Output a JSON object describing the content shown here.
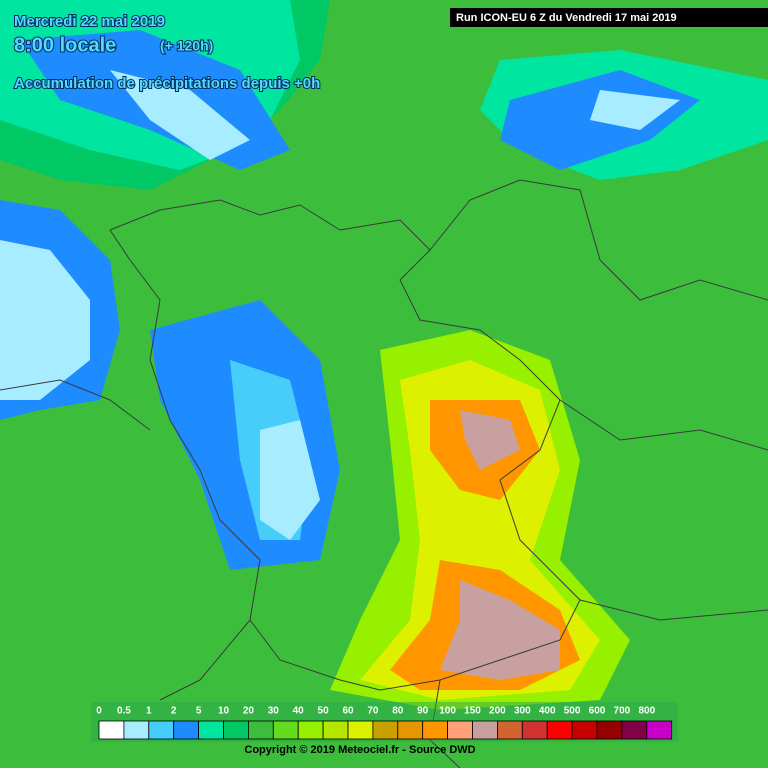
{
  "header": {
    "date": "Mercredi 22 mai 2019",
    "time": "8:00 locale",
    "offset": "(+ 120h)",
    "product": "Accumulation de précipitations depuis +0h",
    "run": "Run ICON-EU 6 Z du Vendredi 17 mai 2019"
  },
  "legend": {
    "items": [
      {
        "label": "0",
        "color": "#ffffff"
      },
      {
        "label": "0.5",
        "color": "#a8ecff"
      },
      {
        "label": "1",
        "color": "#46cdfa"
      },
      {
        "label": "2",
        "color": "#1e8cff"
      },
      {
        "label": "5",
        "color": "#00e6a0"
      },
      {
        "label": "10",
        "color": "#00c864"
      },
      {
        "label": "20",
        "color": "#3cbe3c"
      },
      {
        "label": "30",
        "color": "#64dc1e"
      },
      {
        "label": "40",
        "color": "#96f000"
      },
      {
        "label": "50",
        "color": "#b4e600"
      },
      {
        "label": "60",
        "color": "#dcf000"
      },
      {
        "label": "70",
        "color": "#c8a000"
      },
      {
        "label": "80",
        "color": "#e69600"
      },
      {
        "label": "90",
        "color": "#ff9600"
      },
      {
        "label": "100",
        "color": "#ffa078"
      },
      {
        "label": "150",
        "color": "#c8a0a0"
      },
      {
        "label": "200",
        "color": "#d26432"
      },
      {
        "label": "300",
        "color": "#d23232"
      },
      {
        "label": "400",
        "color": "#ff0000"
      },
      {
        "label": "500",
        "color": "#c80000"
      },
      {
        "label": "600",
        "color": "#960000"
      },
      {
        "label": "700",
        "color": "#820046"
      },
      {
        "label": "800",
        "color": "#c800c8"
      }
    ]
  },
  "footer": {
    "copyright": "Copyright © 2019 Meteociel.fr - Source DWD"
  }
}
